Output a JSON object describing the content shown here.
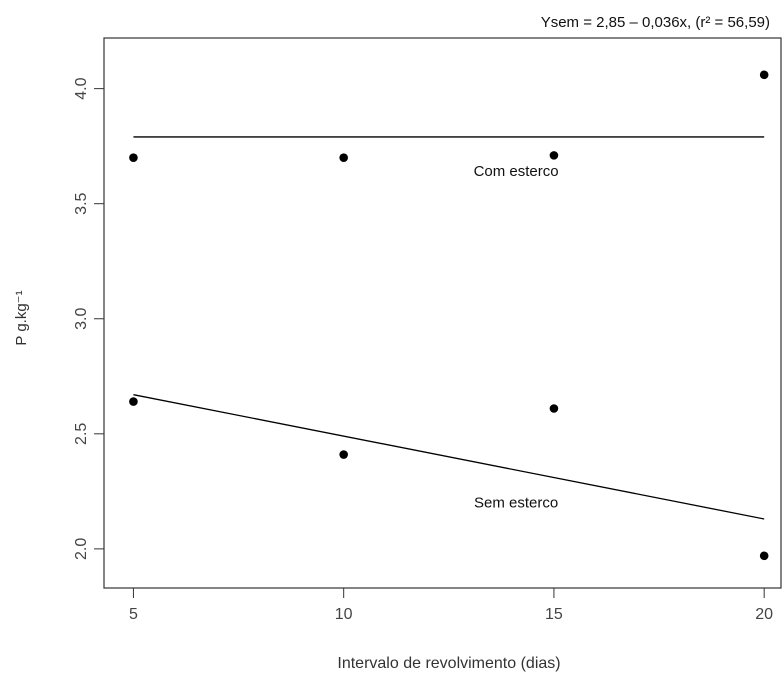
{
  "chart_data": {
    "type": "scatter",
    "title": "",
    "top_annotation": "Ysem = 2,85 – 0,036x, (r² = 56,59)",
    "xlabel": "Intervalo de revolvimento (dias)",
    "ylabel": "P g.kg⁻¹",
    "xlim": [
      4.3,
      20.4
    ],
    "ylim": [
      1.83,
      4.22
    ],
    "x_ticks": [
      5,
      10,
      15,
      20
    ],
    "x_tick_labels": [
      "5",
      "10",
      "15",
      "20"
    ],
    "y_ticks": [
      2.0,
      2.5,
      3.0,
      3.5,
      4.0
    ],
    "y_tick_labels": [
      "2.0",
      "2.5",
      "3.0",
      "3.5",
      "4.0"
    ],
    "grid": false,
    "series": [
      {
        "name": "Com esterco",
        "points": [
          {
            "x": 5,
            "y": 3.7
          },
          {
            "x": 10,
            "y": 3.7
          },
          {
            "x": 15,
            "y": 3.71
          },
          {
            "x": 20,
            "y": 4.06
          }
        ],
        "fit": {
          "x": [
            5,
            20
          ],
          "y": [
            3.79,
            3.79
          ]
        },
        "label": {
          "text": "Com esterco",
          "x": 14.1,
          "y": 3.62
        }
      },
      {
        "name": "Sem esterco",
        "points": [
          {
            "x": 5,
            "y": 2.64
          },
          {
            "x": 10,
            "y": 2.41
          },
          {
            "x": 15,
            "y": 2.61
          },
          {
            "x": 20,
            "y": 1.97
          }
        ],
        "fit": {
          "x": [
            5,
            20
          ],
          "y": [
            2.67,
            2.13
          ]
        },
        "label": {
          "text": "Sem esterco",
          "x": 14.1,
          "y": 2.18
        }
      }
    ],
    "colors": {
      "axis": "#333333",
      "points": "#000000",
      "lines": "#000000"
    }
  }
}
